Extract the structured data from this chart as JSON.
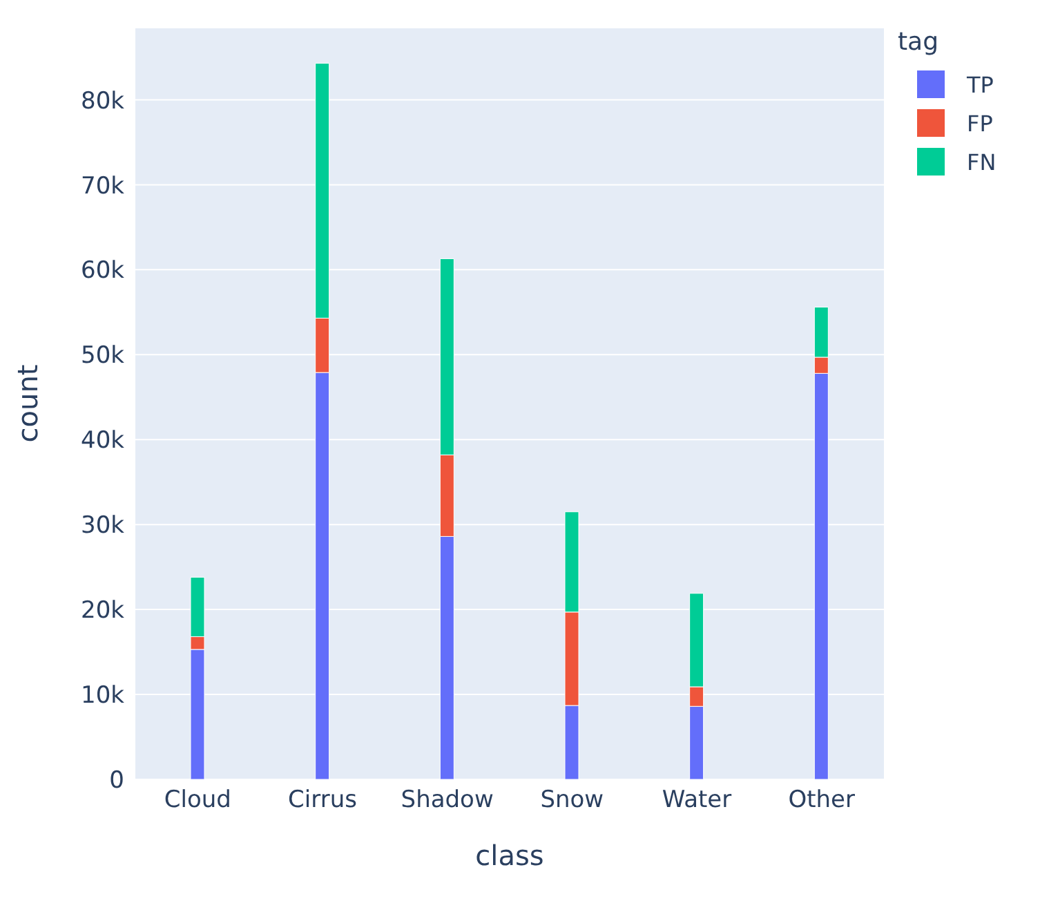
{
  "chart_data": {
    "type": "bar",
    "stacked": true,
    "xlabel": "class",
    "ylabel": "count",
    "legend_title": "tag",
    "legend": "top right",
    "grid": "y",
    "categories": [
      "Cloud",
      "Cirrus",
      "Shadow",
      "Snow",
      "Water",
      "Other"
    ],
    "series": [
      {
        "name": "TP",
        "color": "#636efa",
        "values": [
          15300,
          47900,
          28600,
          8700,
          8600,
          47800
        ]
      },
      {
        "name": "FP",
        "color": "#ef553b",
        "values": [
          1500,
          6400,
          9600,
          11000,
          2300,
          1900
        ]
      },
      {
        "name": "FN",
        "color": "#00cc96",
        "values": [
          7000,
          30000,
          23100,
          11800,
          11000,
          5900
        ]
      }
    ],
    "ylim": [
      0,
      88500
    ],
    "yticks": [
      0,
      {
        "value": 10000,
        "label": "10k"
      },
      {
        "value": 20000,
        "label": "20k"
      },
      {
        "value": 30000,
        "label": "30k"
      },
      {
        "value": 40000,
        "label": "40k"
      },
      {
        "value": 50000,
        "label": "50k"
      },
      {
        "value": 60000,
        "label": "60k"
      },
      {
        "value": 70000,
        "label": "70k"
      },
      {
        "value": 80000,
        "label": "80k"
      }
    ]
  }
}
